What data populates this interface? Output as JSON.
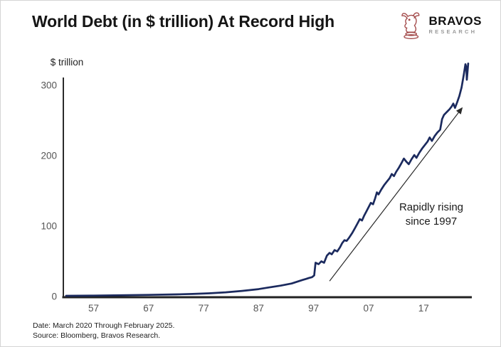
{
  "page": {
    "background": "#ffffff",
    "border_color": "#d4d4d4"
  },
  "logo": {
    "brand": "BRAVOS",
    "sub": "RESEARCH",
    "icon": "bull-chess-piece-icon",
    "icon_color": "#a34a4a",
    "brand_color": "#111111",
    "sub_color": "#9a9a9a"
  },
  "footer": {
    "date_line": "Date: March 2020 Through February 2025.",
    "source_line": "Source: Bloomberg, Bravos Research."
  },
  "chart_data": {
    "type": "line",
    "title": "World Debt (in $ trillion) At Record High",
    "ylabel": "$ trillion",
    "xlabel": "",
    "grid": false,
    "legend": "none",
    "xlim": [
      1951.5,
      2025.5
    ],
    "ylim": [
      0,
      335
    ],
    "y_ticks": [
      0,
      100,
      200,
      300
    ],
    "x_ticks": [
      {
        "year": 1957,
        "label": "57"
      },
      {
        "year": 1967,
        "label": "67"
      },
      {
        "year": 1977,
        "label": "77"
      },
      {
        "year": 1987,
        "label": "87"
      },
      {
        "year": 1997,
        "label": "97"
      },
      {
        "year": 2007,
        "label": "07"
      },
      {
        "year": 2017,
        "label": "17"
      }
    ],
    "line_color": "#1b2a5e",
    "axis_color": "#2b2b2b",
    "tick_color": "#555555",
    "arrow_color": "#2a2a2a",
    "annotation": {
      "line1": "Rapidly rising",
      "line2": "since 1997"
    },
    "trend_arrow": {
      "from_year": 1999.9,
      "from_value": 22,
      "to_year": 2024.0,
      "to_value": 268
    },
    "series": [
      {
        "name": "World debt ($ trillion)",
        "points": [
          [
            1952,
            1
          ],
          [
            1957,
            1.3
          ],
          [
            1962,
            1.8
          ],
          [
            1967,
            2.3
          ],
          [
            1972,
            3
          ],
          [
            1975,
            3.6
          ],
          [
            1978,
            4.5
          ],
          [
            1981,
            6
          ],
          [
            1984,
            8
          ],
          [
            1987,
            10.5
          ],
          [
            1989,
            13
          ],
          [
            1991,
            15.5
          ],
          [
            1993,
            18.5
          ],
          [
            1994,
            21
          ],
          [
            1995,
            23.5
          ],
          [
            1995.6,
            25
          ],
          [
            1996.2,
            26.5
          ],
          [
            1996.7,
            27.5
          ],
          [
            1997.1,
            30
          ],
          [
            1997.35,
            48
          ],
          [
            1997.9,
            46
          ],
          [
            1998.4,
            50
          ],
          [
            1998.9,
            48
          ],
          [
            1999.4,
            58
          ],
          [
            1999.9,
            62
          ],
          [
            2000.3,
            60
          ],
          [
            2000.8,
            66
          ],
          [
            2001.3,
            64
          ],
          [
            2001.8,
            70
          ],
          [
            2002.2,
            76
          ],
          [
            2002.6,
            80
          ],
          [
            2003,
            79
          ],
          [
            2003.5,
            84
          ],
          [
            2004,
            90
          ],
          [
            2004.5,
            97
          ],
          [
            2005,
            104
          ],
          [
            2005.4,
            110
          ],
          [
            2005.8,
            108
          ],
          [
            2006.2,
            115
          ],
          [
            2006.6,
            121
          ],
          [
            2007,
            127
          ],
          [
            2007.4,
            133
          ],
          [
            2007.8,
            131
          ],
          [
            2008.2,
            140
          ],
          [
            2008.5,
            148
          ],
          [
            2008.8,
            145
          ],
          [
            2009.3,
            152
          ],
          [
            2009.8,
            158
          ],
          [
            2010.3,
            163
          ],
          [
            2010.8,
            168
          ],
          [
            2011.2,
            174
          ],
          [
            2011.6,
            171
          ],
          [
            2012,
            177
          ],
          [
            2012.5,
            183
          ],
          [
            2013,
            190
          ],
          [
            2013.4,
            196
          ],
          [
            2013.8,
            192
          ],
          [
            2014.3,
            188
          ],
          [
            2014.8,
            195
          ],
          [
            2015.3,
            201
          ],
          [
            2015.7,
            197
          ],
          [
            2016.2,
            204
          ],
          [
            2016.7,
            210
          ],
          [
            2017.2,
            215
          ],
          [
            2017.7,
            220
          ],
          [
            2018.1,
            226
          ],
          [
            2018.5,
            221
          ],
          [
            2019,
            228
          ],
          [
            2019.5,
            233
          ],
          [
            2020,
            237
          ],
          [
            2020.35,
            252
          ],
          [
            2020.7,
            258
          ],
          [
            2021.2,
            262
          ],
          [
            2021.7,
            266
          ],
          [
            2022.1,
            270
          ],
          [
            2022.4,
            274
          ],
          [
            2022.7,
            268
          ],
          [
            2023.1,
            276
          ],
          [
            2023.5,
            285
          ],
          [
            2023.9,
            297
          ],
          [
            2024.3,
            315
          ],
          [
            2024.6,
            330
          ],
          [
            2024.75,
            326
          ],
          [
            2024.85,
            308
          ],
          [
            2025.1,
            331
          ]
        ]
      }
    ]
  }
}
